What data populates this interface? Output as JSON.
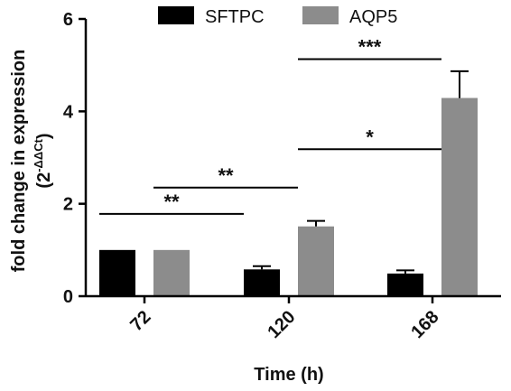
{
  "chart_data": {
    "type": "bar",
    "categories": [
      "72",
      "120",
      "168"
    ],
    "series": [
      {
        "name": "SFTPC",
        "values": [
          1.0,
          0.58,
          0.49
        ],
        "errors": [
          0.0,
          0.07,
          0.07
        ],
        "color": "#000000"
      },
      {
        "name": "AQP5",
        "values": [
          1.0,
          1.51,
          4.29
        ],
        "errors": [
          0.0,
          0.12,
          0.58
        ],
        "color": "#8c8c8c"
      }
    ],
    "xlabel": "Time (h)",
    "ylabel_line1": "fold change in expression",
    "ylabel_line2_base": "(2",
    "ylabel_line2_sup": "-ΔΔCt",
    "ylabel_line2_end": ")",
    "ylim": [
      0,
      6
    ],
    "yticks": [
      "0",
      "2",
      "4",
      "6"
    ],
    "legend_position": "top",
    "significance": [
      {
        "label": "**",
        "from": "72",
        "to": "120",
        "series": "SFTPC",
        "y": 1.78
      },
      {
        "label": "**",
        "from": "72",
        "to": "120",
        "series": "AQP5",
        "y": 2.35
      },
      {
        "label": "*",
        "from": "120",
        "to": "168",
        "series": "AQP5",
        "y": 3.18
      },
      {
        "label": "***",
        "from": "120",
        "to": "168",
        "series": "AQP5",
        "y": 5.13
      }
    ]
  }
}
